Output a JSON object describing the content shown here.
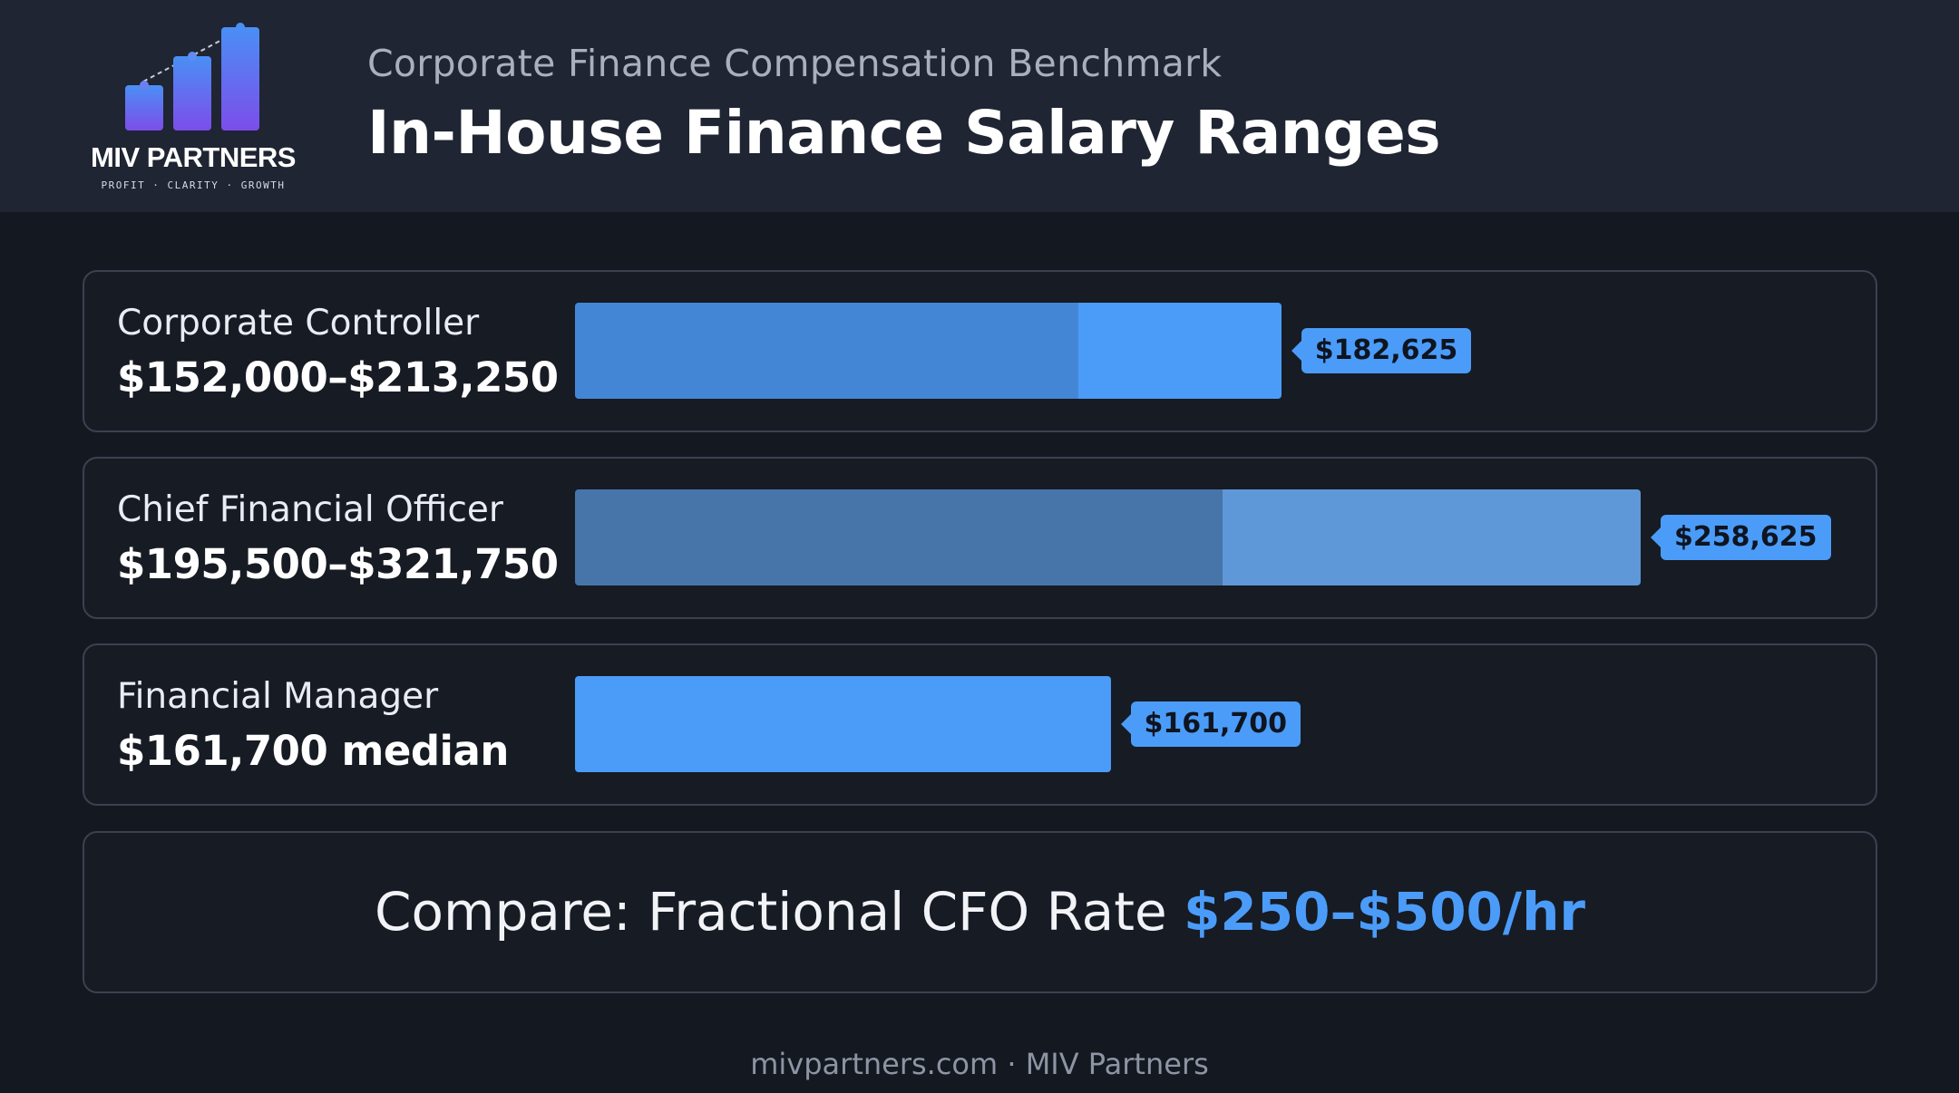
{
  "brand": {
    "name": "MIV PARTNERS",
    "tagline": "PROFIT · CLARITY · GROWTH",
    "logo_icon": "rising-bars-icon",
    "colors": {
      "logo_gradient_top": "#4a8ff5",
      "logo_gradient_bottom": "#7c4dea"
    }
  },
  "header": {
    "subtitle": "Corporate Finance Compensation Benchmark",
    "title": "In-House Finance Salary Ranges"
  },
  "chart_data": {
    "type": "bar",
    "title": "In-House Finance Salary Ranges",
    "xlabel": "",
    "ylabel": "",
    "grid": false,
    "categories": [
      "Corporate Controller",
      "Chief Financial Officer",
      "Financial Manager"
    ],
    "rows": [
      {
        "label": "Corporate Controller",
        "value_text": "$152,000–$213,250",
        "low": 152000,
        "high": 213250,
        "midpoint": 182625,
        "tag": "$182,625",
        "colors": {
          "base": "#4486d6",
          "upper": "#4b9cf8"
        }
      },
      {
        "label": "Chief Financial Officer",
        "value_text": "$195,500–$321,750",
        "low": 195500,
        "high": 321750,
        "midpoint": 258625,
        "tag": "$258,625",
        "colors": {
          "base": "#4775aa",
          "upper": "#5f98d8"
        }
      },
      {
        "label": "Financial Manager",
        "value_text": "$161,700 median",
        "low": null,
        "high": 161700,
        "midpoint": 161700,
        "tag": "$161,700",
        "colors": {
          "base": "#4b9cf8",
          "upper": "#4b9cf8"
        }
      }
    ]
  },
  "compare": {
    "prefix": "Compare: Fractional CFO Rate",
    "value": "$250–$500/hr"
  },
  "footer": {
    "text": "mivpartners.com · MIV Partners"
  },
  "colors": {
    "background": "#141821",
    "header_bg": "#1f2532",
    "accent": "#4b9cf8",
    "card_border": "#3a4150"
  }
}
